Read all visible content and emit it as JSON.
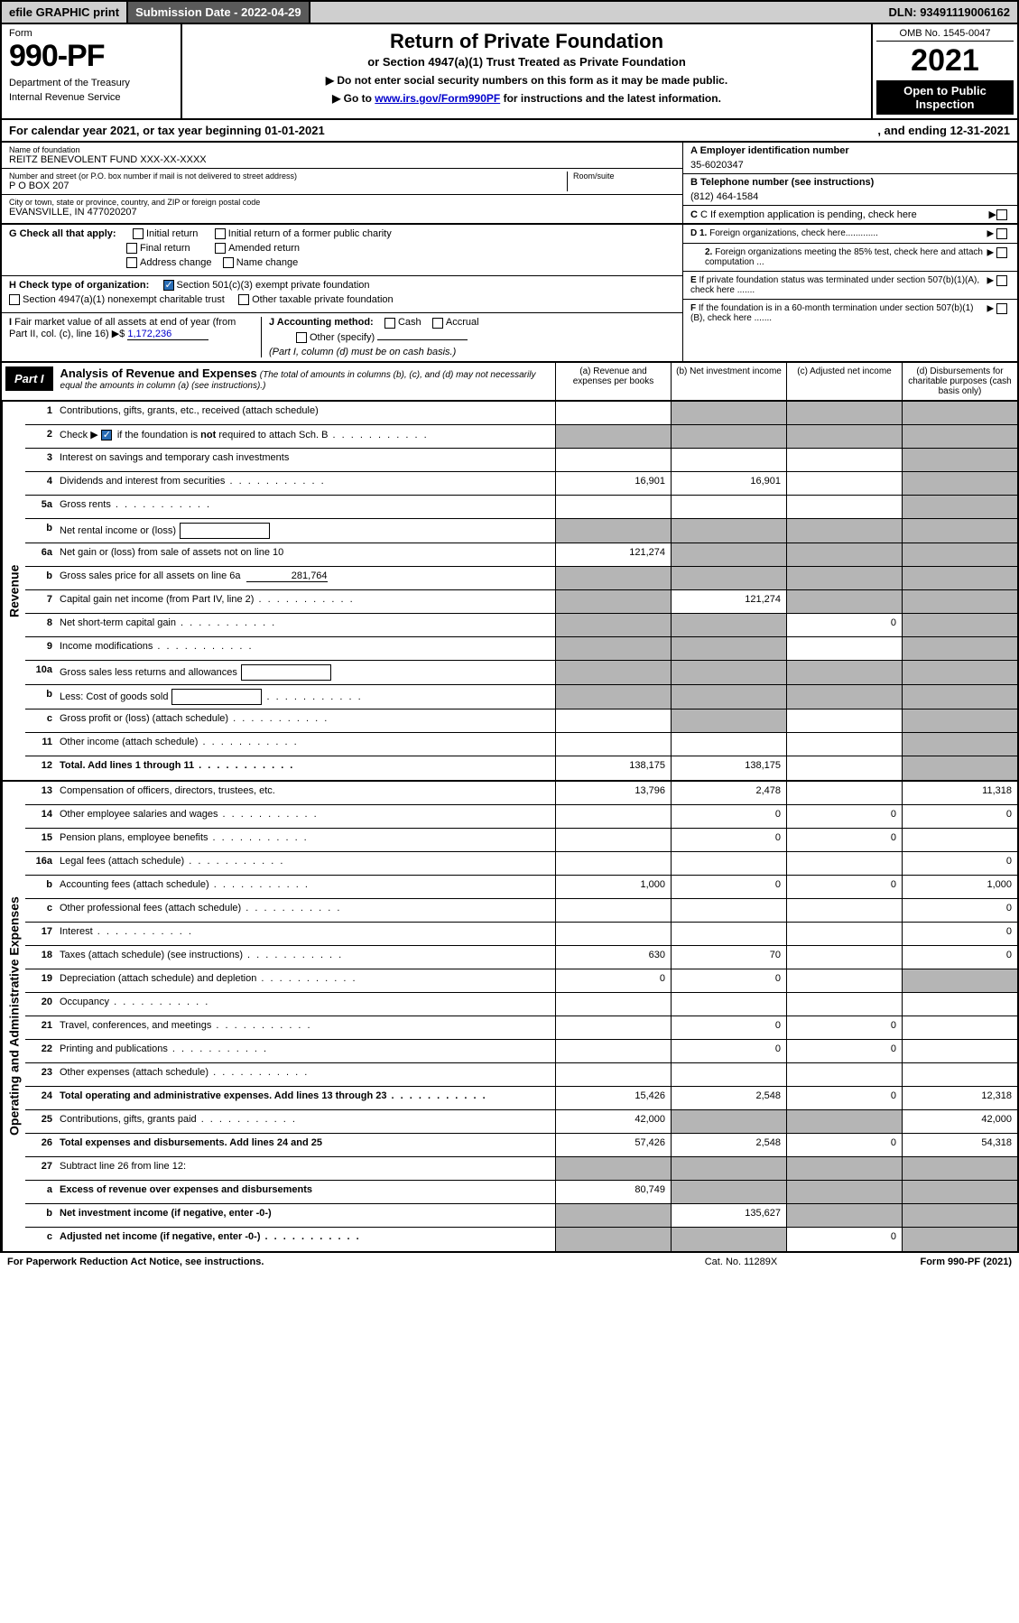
{
  "topbar": {
    "efile": "efile GRAPHIC print",
    "submission_label": "Submission Date - ",
    "submission_date": "2022-04-29",
    "dln_label": "DLN: ",
    "dln": "93491119006162"
  },
  "header": {
    "form_label": "Form",
    "form_no": "990-PF",
    "dept1": "Department of the Treasury",
    "dept2": "Internal Revenue Service",
    "title": "Return of Private Foundation",
    "subtitle": "or Section 4947(a)(1) Trust Treated as Private Foundation",
    "instr1": "▶ Do not enter social security numbers on this form as it may be made public.",
    "instr2_pre": "▶ Go to ",
    "instr2_link": "www.irs.gov/Form990PF",
    "instr2_post": " for instructions and the latest information.",
    "omb": "OMB No. 1545-0047",
    "year": "2021",
    "open1": "Open to Public",
    "open2": "Inspection"
  },
  "calyear": {
    "left": "For calendar year 2021, or tax year beginning 01-01-2021",
    "right": ", and ending 12-31-2021"
  },
  "id": {
    "name_label": "Name of foundation",
    "name": "REITZ BENEVOLENT FUND XXX-XX-XXXX",
    "addr_label": "Number and street (or P.O. box number if mail is not delivered to street address)",
    "room_label": "Room/suite",
    "addr": "P O BOX 207",
    "city_label": "City or town, state or province, country, and ZIP or foreign postal code",
    "city": "EVANSVILLE, IN  477020207",
    "ein_label": "A Employer identification number",
    "ein": "35-6020347",
    "phone_label": "B Telephone number (see instructions)",
    "phone": "(812) 464-1584",
    "exemption_label": "C If exemption application is pending, check here"
  },
  "checks": {
    "g_label": "G Check all that apply:",
    "g_initial": "Initial return",
    "g_initial_former": "Initial return of a former public charity",
    "g_final": "Final return",
    "g_amended": "Amended return",
    "g_address": "Address change",
    "g_name": "Name change",
    "h_label": "H Check type of organization:",
    "h_501c3": "Section 501(c)(3) exempt private foundation",
    "h_4947": "Section 4947(a)(1) nonexempt charitable trust",
    "h_other": "Other taxable private foundation",
    "i_label1": "I Fair market value of all assets at end of year (from Part II, col. (c), line 16)",
    "i_arrow": "▶$",
    "i_value": "1,172,236",
    "j_label": "J Accounting method:",
    "j_cash": "Cash",
    "j_accrual": "Accrual",
    "j_other": "Other (specify)",
    "j_note": "(Part I, column (d) must be on cash basis.)",
    "d1": "D 1. Foreign organizations, check here.............",
    "d2": "2. Foreign organizations meeting the 85% test, check here and attach computation ...",
    "e": "E If private foundation status was terminated under section 507(b)(1)(A), check here .......",
    "f": "F If the foundation is in a 60-month termination under section 507(b)(1)(B), check here ......."
  },
  "part1": {
    "badge": "Part I",
    "title": "Analysis of Revenue and Expenses",
    "title_note": " (The total of amounts in columns (b), (c), and (d) may not necessarily equal the amounts in column (a) (see instructions).)",
    "col_a": "(a) Revenue and expenses per books",
    "col_b": "(b) Net investment income",
    "col_c": "(c) Adjusted net income",
    "col_d": "(d) Disbursements for charitable purposes (cash basis only)"
  },
  "sidelabels": {
    "revenue": "Revenue",
    "expenses": "Operating and Administrative Expenses"
  },
  "rows": [
    {
      "num": "1",
      "desc": "Contributions, gifts, grants, etc., received (attach schedule)",
      "a": "",
      "b": "_g",
      "c": "_g",
      "d": "_g"
    },
    {
      "num": "2",
      "desc": "Check ▶ ☑ if the foundation is not required to attach Sch. B",
      "a": "_g",
      "b": "_g",
      "c": "_g",
      "d": "_g",
      "checked": true,
      "dots": true
    },
    {
      "num": "3",
      "desc": "Interest on savings and temporary cash investments",
      "a": "",
      "b": "",
      "c": "",
      "d": "_g"
    },
    {
      "num": "4",
      "desc": "Dividends and interest from securities",
      "a": "16,901",
      "b": "16,901",
      "c": "",
      "d": "_g",
      "dots": true
    },
    {
      "num": "5a",
      "desc": "Gross rents",
      "a": "",
      "b": "",
      "c": "",
      "d": "_g",
      "dots": true
    },
    {
      "num": "b",
      "desc": "Net rental income or (loss)",
      "a": "_g",
      "b": "_g",
      "c": "_g",
      "d": "_g",
      "inlinebox": true
    },
    {
      "num": "6a",
      "desc": "Net gain or (loss) from sale of assets not on line 10",
      "a": "121,274",
      "b": "_g",
      "c": "_g",
      "d": "_g"
    },
    {
      "num": "b",
      "desc": "Gross sales price for all assets on line 6a",
      "a": "_g",
      "b": "_g",
      "c": "_g",
      "d": "_g",
      "inline": "281,764"
    },
    {
      "num": "7",
      "desc": "Capital gain net income (from Part IV, line 2)",
      "a": "_g",
      "b": "121,274",
      "c": "_g",
      "d": "_g",
      "dots": true
    },
    {
      "num": "8",
      "desc": "Net short-term capital gain",
      "a": "_g",
      "b": "_g",
      "c": "0",
      "d": "_g",
      "dots": true
    },
    {
      "num": "9",
      "desc": "Income modifications",
      "a": "_g",
      "b": "_g",
      "c": "",
      "d": "_g",
      "dots": true
    },
    {
      "num": "10a",
      "desc": "Gross sales less returns and allowances",
      "a": "_g",
      "b": "_g",
      "c": "_g",
      "d": "_g",
      "inlinebox": true
    },
    {
      "num": "b",
      "desc": "Less: Cost of goods sold",
      "a": "_g",
      "b": "_g",
      "c": "_g",
      "d": "_g",
      "inlinebox": true,
      "dots": true
    },
    {
      "num": "c",
      "desc": "Gross profit or (loss) (attach schedule)",
      "a": "",
      "b": "_g",
      "c": "",
      "d": "_g",
      "dots": true
    },
    {
      "num": "11",
      "desc": "Other income (attach schedule)",
      "a": "",
      "b": "",
      "c": "",
      "d": "_g",
      "dots": true
    },
    {
      "num": "12",
      "desc": "Total. Add lines 1 through 11",
      "a": "138,175",
      "b": "138,175",
      "c": "",
      "d": "_g",
      "bold": true,
      "dots": true
    }
  ],
  "exprows": [
    {
      "num": "13",
      "desc": "Compensation of officers, directors, trustees, etc.",
      "a": "13,796",
      "b": "2,478",
      "c": "",
      "d": "11,318"
    },
    {
      "num": "14",
      "desc": "Other employee salaries and wages",
      "a": "",
      "b": "0",
      "c": "0",
      "d": "0",
      "dots": true
    },
    {
      "num": "15",
      "desc": "Pension plans, employee benefits",
      "a": "",
      "b": "0",
      "c": "0",
      "d": "",
      "dots": true
    },
    {
      "num": "16a",
      "desc": "Legal fees (attach schedule)",
      "a": "",
      "b": "",
      "c": "",
      "d": "0",
      "dots": true
    },
    {
      "num": "b",
      "desc": "Accounting fees (attach schedule)",
      "a": "1,000",
      "b": "0",
      "c": "0",
      "d": "1,000",
      "dots": true
    },
    {
      "num": "c",
      "desc": "Other professional fees (attach schedule)",
      "a": "",
      "b": "",
      "c": "",
      "d": "0",
      "dots": true
    },
    {
      "num": "17",
      "desc": "Interest",
      "a": "",
      "b": "",
      "c": "",
      "d": "0",
      "dots": true
    },
    {
      "num": "18",
      "desc": "Taxes (attach schedule) (see instructions)",
      "a": "630",
      "b": "70",
      "c": "",
      "d": "0",
      "dots": true
    },
    {
      "num": "19",
      "desc": "Depreciation (attach schedule) and depletion",
      "a": "0",
      "b": "0",
      "c": "",
      "d": "_g",
      "dots": true
    },
    {
      "num": "20",
      "desc": "Occupancy",
      "a": "",
      "b": "",
      "c": "",
      "d": "",
      "dots": true
    },
    {
      "num": "21",
      "desc": "Travel, conferences, and meetings",
      "a": "",
      "b": "0",
      "c": "0",
      "d": "",
      "dots": true
    },
    {
      "num": "22",
      "desc": "Printing and publications",
      "a": "",
      "b": "0",
      "c": "0",
      "d": "",
      "dots": true
    },
    {
      "num": "23",
      "desc": "Other expenses (attach schedule)",
      "a": "",
      "b": "",
      "c": "",
      "d": "",
      "dots": true
    },
    {
      "num": "24",
      "desc": "Total operating and administrative expenses. Add lines 13 through 23",
      "a": "15,426",
      "b": "2,548",
      "c": "0",
      "d": "12,318",
      "bold": true,
      "dots": true
    },
    {
      "num": "25",
      "desc": "Contributions, gifts, grants paid",
      "a": "42,000",
      "b": "_g",
      "c": "_g",
      "d": "42,000",
      "dots": true
    },
    {
      "num": "26",
      "desc": "Total expenses and disbursements. Add lines 24 and 25",
      "a": "57,426",
      "b": "2,548",
      "c": "0",
      "d": "54,318",
      "bold": true
    },
    {
      "num": "27",
      "desc": "Subtract line 26 from line 12:",
      "a": "_g",
      "b": "_g",
      "c": "_g",
      "d": "_g"
    },
    {
      "num": "a",
      "desc": "Excess of revenue over expenses and disbursements",
      "a": "80,749",
      "b": "_g",
      "c": "_g",
      "d": "_g",
      "bold": true
    },
    {
      "num": "b",
      "desc": "Net investment income (if negative, enter -0-)",
      "a": "_g",
      "b": "135,627",
      "c": "_g",
      "d": "_g",
      "bold": true
    },
    {
      "num": "c",
      "desc": "Adjusted net income (if negative, enter -0-)",
      "a": "_g",
      "b": "_g",
      "c": "0",
      "d": "_g",
      "bold": true,
      "dots": true
    }
  ],
  "footer": {
    "left": "For Paperwork Reduction Act Notice, see instructions.",
    "center": "Cat. No. 11289X",
    "right": "Form 990-PF (2021)"
  }
}
